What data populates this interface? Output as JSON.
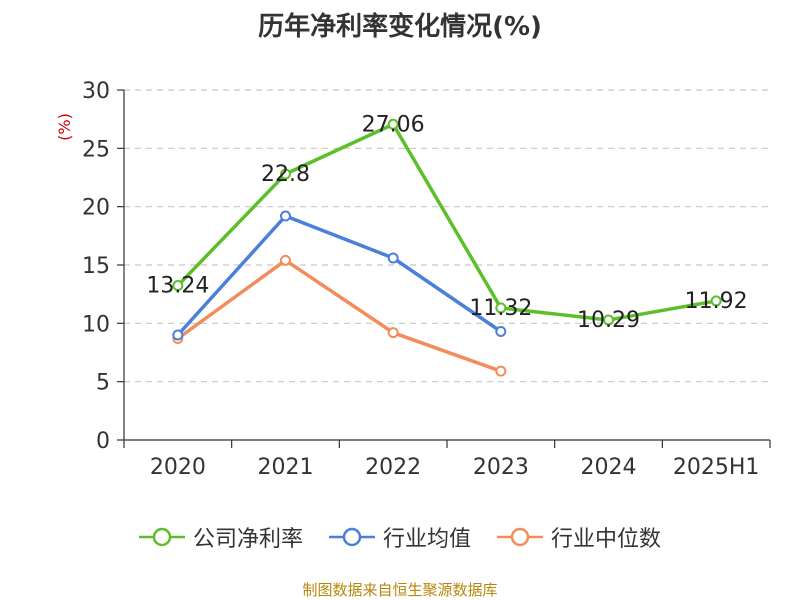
{
  "chart_data": {
    "type": "line",
    "title": "历年净利率变化情况(%)",
    "ylabel": "(%)",
    "xlabel": "",
    "categories": [
      "2020",
      "2021",
      "2022",
      "2023",
      "2024",
      "2025H1"
    ],
    "ylim": [
      0,
      30
    ],
    "yticks": [
      0,
      5,
      10,
      15,
      20,
      25,
      30
    ],
    "grid": true,
    "legend_position": "bottom",
    "series": [
      {
        "name": "公司净利率",
        "color": "#5cbf2a",
        "values": [
          13.24,
          22.8,
          27.06,
          11.32,
          10.29,
          11.92
        ],
        "labels": [
          "13.24",
          "22.8",
          "27.06",
          "11.32",
          "10.29",
          "11.92"
        ]
      },
      {
        "name": "行业均值",
        "color": "#4a7fdc",
        "values": [
          9.0,
          19.2,
          15.6,
          9.3,
          null,
          null
        ]
      },
      {
        "name": "行业中位数",
        "color": "#f28c5a",
        "values": [
          8.7,
          15.4,
          9.2,
          5.9,
          null,
          null
        ]
      }
    ]
  },
  "footer": {
    "source": "制图数据来自恒生聚源数据库"
  }
}
